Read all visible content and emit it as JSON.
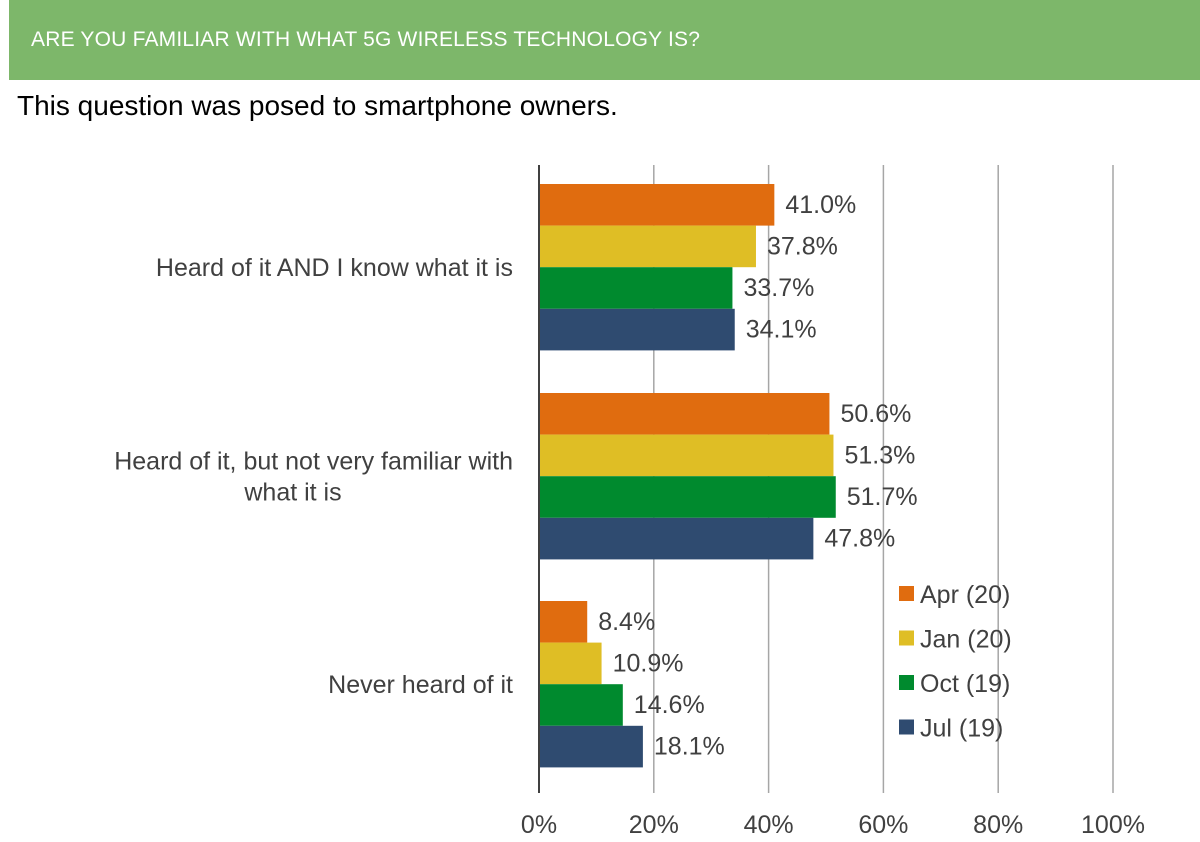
{
  "header": {
    "title": "ARE YOU FAMILIAR WITH WHAT 5G WIRELESS TECHNOLOGY IS?",
    "subtitle": "This question was posed to smartphone owners."
  },
  "colors": {
    "banner": "#7db76a",
    "gridline": "#a6a6a6",
    "axis": "#404040",
    "text": "#404040"
  },
  "chart_data": {
    "type": "bar",
    "orientation": "horizontal",
    "categories": [
      [
        "Heard of it AND I know what it is"
      ],
      [
        "Heard of it, but not very familiar with",
        "what it is"
      ],
      [
        "Never heard of it"
      ]
    ],
    "series": [
      {
        "name": "Apr (20)",
        "color": "#e06c0f",
        "values": [
          41.0,
          50.6,
          8.4
        ]
      },
      {
        "name": "Jan (20)",
        "color": "#dfbe25",
        "values": [
          37.8,
          51.3,
          10.9
        ]
      },
      {
        "name": "Oct (19)",
        "color": "#008a2e",
        "values": [
          33.7,
          51.7,
          14.6
        ]
      },
      {
        "name": "Jul (19)",
        "color": "#2f4b70",
        "values": [
          34.1,
          47.8,
          18.1
        ]
      }
    ],
    "value_suffix": "%",
    "xlim": [
      0,
      100
    ],
    "xticks": [
      0,
      20,
      40,
      60,
      80,
      100
    ],
    "xtick_labels": [
      "0%",
      "20%",
      "40%",
      "60%",
      "80%",
      "100%"
    ],
    "grid": true,
    "legend_position": "bottom-right"
  }
}
